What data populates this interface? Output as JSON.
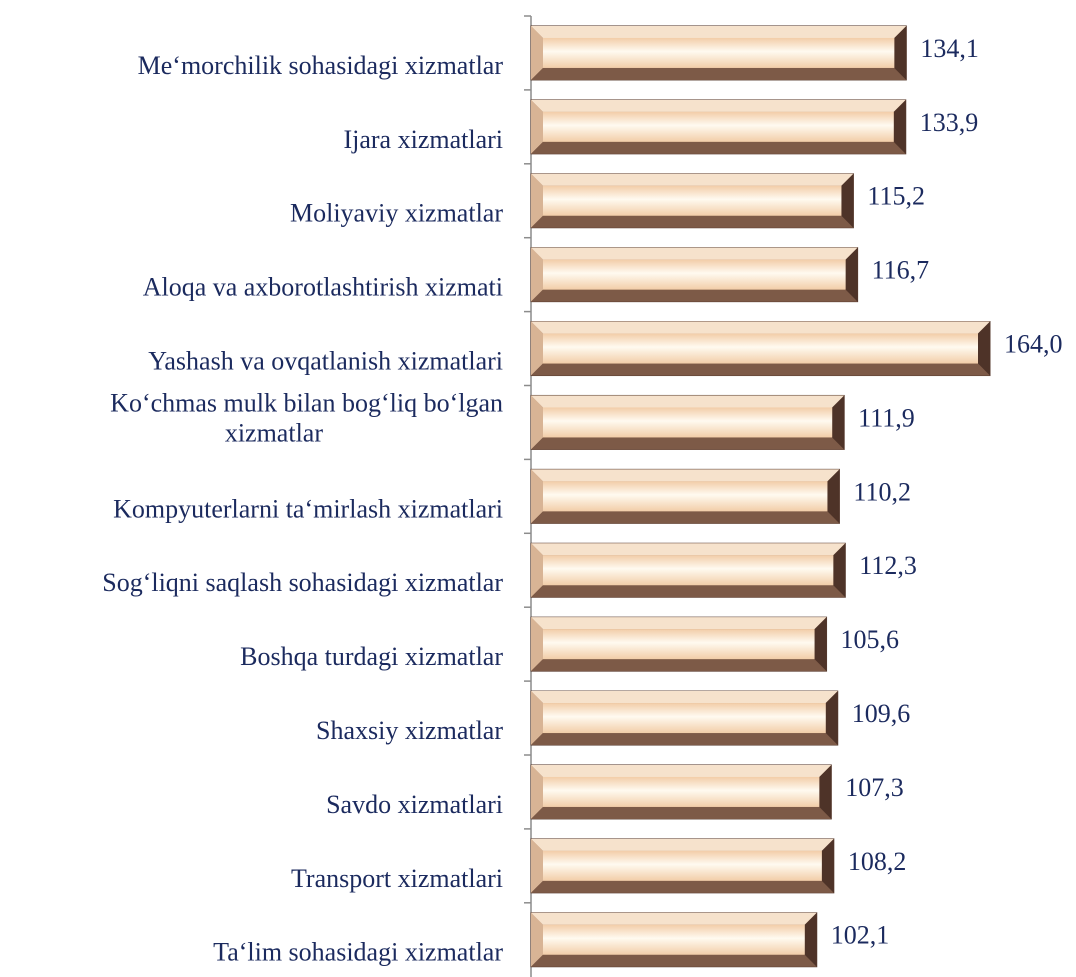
{
  "chart_data": {
    "type": "bar",
    "orientation": "horizontal",
    "categories": [
      "Me‘morchilik sohasidagi xizmatlar",
      "Ijara xizmatlari",
      "Moliyaviy xizmatlar",
      "Aloqa va axborotlashtirish xizmati",
      "Yashash va ovqatlanish xizmatlari",
      "Ko‘chmas mulk bilan bog‘liq bo‘lgan xizmatlar",
      "Kompyuterlarni ta‘mirlash xizmatlari",
      "Sog‘liqni saqlash sohasidagi xizmatlar",
      "Boshqa turdagi xizmatlar",
      "Shaxsiy xizmatlar",
      "Savdo xizmatlari",
      "Transport xizmatlari",
      "Ta‘lim sohasidagi xizmatlar"
    ],
    "category_lines": [
      [
        "Me‘morchilik sohasidagi xizmatlar"
      ],
      [
        "Ijara xizmatlari"
      ],
      [
        "Moliyaviy xizmatlar"
      ],
      [
        "Aloqa va axborotlashtirish xizmati"
      ],
      [
        "Yashash va ovqatlanish xizmatlari"
      ],
      [
        "Ko‘chmas mulk bilan bog‘liq bo‘lgan",
        "xizmatlar"
      ],
      [
        "Kompyuterlarni ta‘mirlash xizmatlari"
      ],
      [
        "Sog‘liqni saqlash sohasidagi xizmatlar"
      ],
      [
        "Boshqa turdagi xizmatlar"
      ],
      [
        "Shaxsiy xizmatlar"
      ],
      [
        "Savdo xizmatlari"
      ],
      [
        "Transport xizmatlari"
      ],
      [
        "Ta‘lim sohasidagi xizmatlar"
      ]
    ],
    "values": [
      134.1,
      133.9,
      115.2,
      116.7,
      164.0,
      111.9,
      110.2,
      112.3,
      105.6,
      109.6,
      107.3,
      108.2,
      102.1
    ],
    "value_labels": [
      "134,1",
      "133,9",
      "115,2",
      "116,7",
      "164,0",
      "111,9",
      "110,2",
      "112,3",
      "105,6",
      "109,6",
      "107,3",
      "108,2",
      "102,1"
    ],
    "xlim": [
      0,
      164.0
    ],
    "grid": false,
    "legend": "none",
    "colors": {
      "bar_light": "#fffaf0",
      "bar_mid": "#f2cda8",
      "bar_dark": "#6b4a3a",
      "label_text": "#1b2a5e",
      "axis": "#8c8c8c"
    }
  }
}
